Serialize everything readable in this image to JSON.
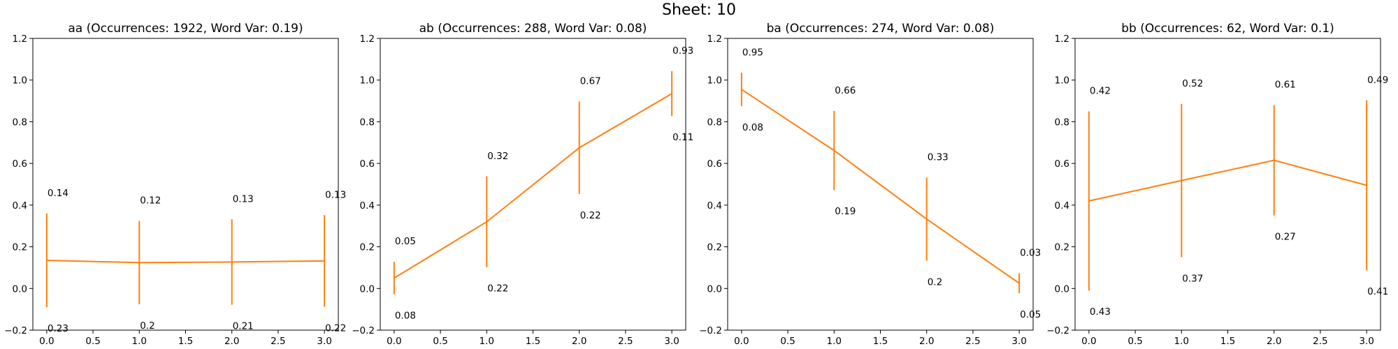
{
  "figure": {
    "suptitle": "Sheet: 10"
  },
  "chart_data": [
    {
      "type": "line",
      "title": "aa (Occurrences: 1922, Word Var: 0.19)",
      "xlabel": "",
      "ylabel": "",
      "x": [
        0,
        1,
        2,
        3
      ],
      "x_tick_labels": [
        "0.0",
        "0.5",
        "1.0",
        "1.5",
        "2.0",
        "2.5",
        "3.0"
      ],
      "y_tick_labels": [
        "−0.2",
        "0.0",
        "0.2",
        "0.4",
        "0.6",
        "0.8",
        "1.0",
        "1.2"
      ],
      "xlim": [
        -0.15,
        3.15
      ],
      "ylim": [
        -0.2,
        1.2
      ],
      "series": [
        {
          "values": [
            0.135,
            0.124,
            0.127,
            0.132
          ],
          "errors": [
            0.225,
            0.2,
            0.205,
            0.22
          ],
          "upper_labels": [
            "0.14",
            "0.12",
            "0.13",
            "0.13"
          ],
          "lower_labels": [
            "0.23",
            "0.2",
            "0.21",
            "0.22"
          ],
          "color": "#ff7f0e"
        }
      ],
      "grid": false
    },
    {
      "type": "line",
      "title": "ab (Occurrences: 288, Word Var: 0.08)",
      "xlabel": "",
      "ylabel": "",
      "x": [
        0,
        1,
        2,
        3
      ],
      "x_tick_labels": [
        "0.0",
        "0.5",
        "1.0",
        "1.5",
        "2.0",
        "2.5",
        "3.0"
      ],
      "y_tick_labels": [
        "−0.2",
        "0.0",
        "0.2",
        "0.4",
        "0.6",
        "0.8",
        "1.0",
        "1.2"
      ],
      "xlim": [
        -0.15,
        3.15
      ],
      "ylim": [
        -0.2,
        1.2
      ],
      "series": [
        {
          "values": [
            0.05,
            0.32,
            0.675,
            0.935
          ],
          "errors": [
            0.078,
            0.218,
            0.222,
            0.108
          ],
          "upper_labels": [
            "0.05",
            "0.32",
            "0.67",
            "0.93"
          ],
          "lower_labels": [
            "0.08",
            "0.22",
            "0.22",
            "0.11"
          ],
          "color": "#ff7f0e"
        }
      ],
      "grid": false
    },
    {
      "type": "line",
      "title": "ba (Occurrences: 274, Word Var: 0.08)",
      "xlabel": "",
      "ylabel": "",
      "x": [
        0,
        1,
        2,
        3
      ],
      "x_tick_labels": [
        "0.0",
        "0.5",
        "1.0",
        "1.5",
        "2.0",
        "2.5",
        "3.0"
      ],
      "y_tick_labels": [
        "−0.2",
        "0.0",
        "0.2",
        "0.4",
        "0.6",
        "0.8",
        "1.0",
        "1.2"
      ],
      "xlim": [
        -0.15,
        3.15
      ],
      "ylim": [
        -0.2,
        1.2
      ],
      "series": [
        {
          "values": [
            0.955,
            0.662,
            0.333,
            0.025
          ],
          "errors": [
            0.08,
            0.19,
            0.2,
            0.048
          ],
          "upper_labels": [
            "0.95",
            "0.66",
            "0.33",
            "0.03"
          ],
          "lower_labels": [
            "0.08",
            "0.19",
            "0.2",
            "0.05"
          ],
          "color": "#ff7f0e"
        }
      ],
      "grid": false
    },
    {
      "type": "line",
      "title": "bb (Occurrences: 62, Word Var: 0.1)",
      "xlabel": "",
      "ylabel": "",
      "x": [
        0,
        1,
        2,
        3
      ],
      "x_tick_labels": [
        "0.0",
        "0.5",
        "1.0",
        "1.5",
        "2.0",
        "2.5",
        "3.0"
      ],
      "y_tick_labels": [
        "−0.2",
        "0.0",
        "0.2",
        "0.4",
        "0.6",
        "0.8",
        "1.0",
        "1.2"
      ],
      "xlim": [
        -0.15,
        3.15
      ],
      "ylim": [
        -0.2,
        1.2
      ],
      "series": [
        {
          "values": [
            0.42,
            0.518,
            0.615,
            0.495
          ],
          "errors": [
            0.43,
            0.368,
            0.265,
            0.408
          ],
          "upper_labels": [
            "0.42",
            "0.52",
            "0.61",
            "0.49"
          ],
          "lower_labels": [
            "0.43",
            "0.37",
            "0.27",
            "0.41"
          ],
          "color": "#ff7f0e"
        }
      ],
      "grid": false
    }
  ]
}
